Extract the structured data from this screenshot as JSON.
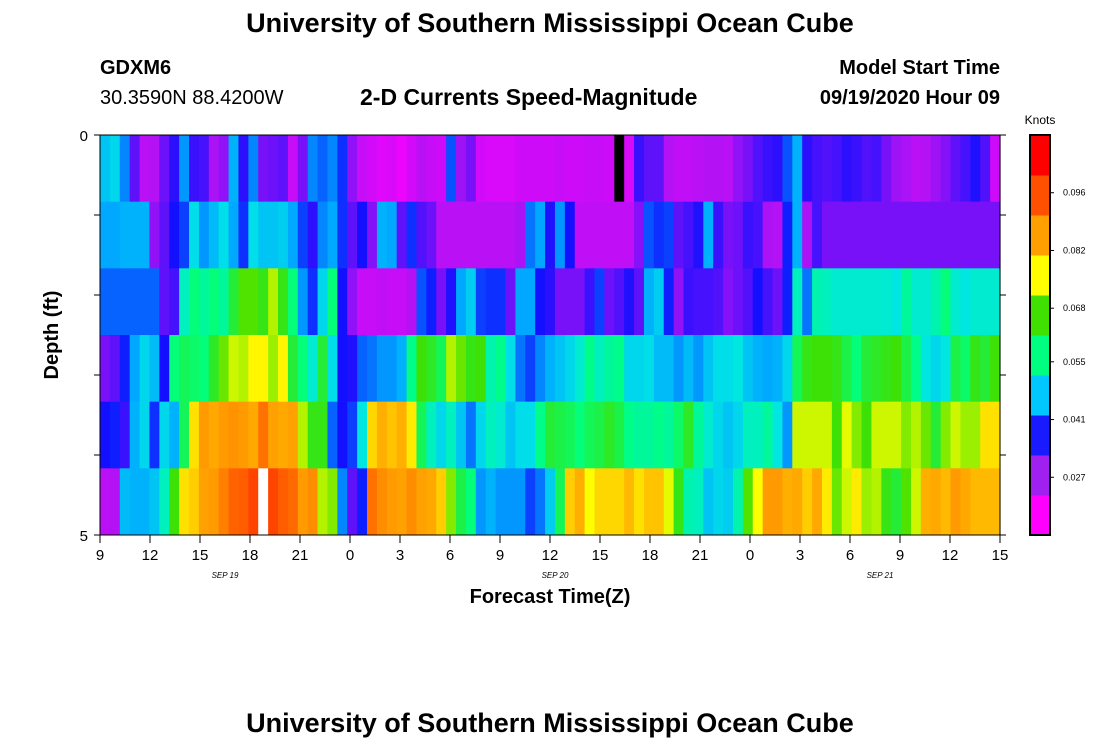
{
  "header": {
    "title": "University of Southern Mississippi Ocean Cube",
    "station": "GDXM6",
    "coords": "30.3590N 88.4200W",
    "subtitle": "2-D Currents Speed-Magnitude",
    "model_label": "Model Start Time",
    "model_time": "09/19/2020 Hour 09"
  },
  "footer": {
    "title": "University of Southern Mississippi Ocean Cube"
  },
  "chart_data": {
    "type": "heatmap",
    "title": "2-D Currents Speed-Magnitude",
    "xlabel": "Forecast Time(Z)",
    "ylabel": "Depth (ft)",
    "y_tick_labels": [
      "0",
      "5"
    ],
    "ylim": [
      0,
      5
    ],
    "y_rows": [
      "0-0.83",
      "0.83-1.67",
      "1.67-2.5",
      "2.5-3.33",
      "3.33-4.17",
      "4.17-5"
    ],
    "x_tick_labels": [
      "9",
      "12",
      "15",
      "18",
      "21",
      "0",
      "3",
      "6",
      "9",
      "12",
      "15",
      "18",
      "21",
      "0",
      "3",
      "6",
      "9",
      "12",
      "15"
    ],
    "date_labels": [
      "SEP 19",
      "SEP 20",
      "SEP 21"
    ],
    "time_start": "09/19/2020 09Z",
    "time_end": "09/21/2020 15Z",
    "hours_per_column": 1,
    "colorbar": {
      "unit": "Knots",
      "tick_labels": [
        "0.027",
        "0.041",
        "0.055",
        "0.068",
        "0.082",
        "0.096"
      ],
      "range": [
        0.013,
        0.11
      ],
      "colors": [
        "#ff00ff",
        "#a020f0",
        "#1a1aff",
        "#00c8ff",
        "#00ff80",
        "#40e000",
        "#ffff00",
        "#ffa000",
        "#ff5000",
        "#ff0000"
      ]
    },
    "palette_stops": [
      [
        0.0,
        "#ff00ff"
      ],
      [
        0.13,
        "#b012f5"
      ],
      [
        0.26,
        "#1010ff"
      ],
      [
        0.35,
        "#00a8ff"
      ],
      [
        0.42,
        "#00e6e6"
      ],
      [
        0.48,
        "#00ff80"
      ],
      [
        0.56,
        "#40e000"
      ],
      [
        0.64,
        "#ffff00"
      ],
      [
        0.72,
        "#ffb000"
      ],
      [
        0.84,
        "#ff6000"
      ],
      [
        1.0,
        "#ff0000"
      ]
    ],
    "missing_cells": [
      {
        "row": 0,
        "col": 52,
        "color": "#000000"
      },
      {
        "row": 5,
        "col": 16,
        "color": "#ffffff"
      }
    ],
    "values": [
      [
        0.05,
        0.052,
        0.045,
        0.032,
        0.024,
        0.025,
        0.031,
        0.036,
        0.046,
        0.035,
        0.034,
        0.026,
        0.028,
        0.048,
        0.036,
        0.045,
        0.03,
        0.031,
        0.032,
        0.022,
        0.03,
        0.045,
        0.043,
        0.045,
        0.04,
        0.028,
        0.022,
        0.02,
        0.018,
        0.019,
        0.016,
        0.02,
        0.024,
        0.022,
        0.021,
        0.042,
        0.027,
        0.03,
        0.02,
        0.019,
        0.019,
        0.019,
        0.021,
        0.021,
        0.021,
        0.021,
        0.022,
        0.021,
        0.021,
        0.022,
        0.022,
        0.021,
        0.015,
        0.019,
        0.035,
        0.032,
        0.032,
        0.025,
        0.023,
        0.023,
        0.024,
        0.025,
        0.025,
        0.024,
        0.028,
        0.03,
        0.033,
        0.035,
        0.036,
        0.042,
        0.048,
        0.036,
        0.034,
        0.033,
        0.034,
        0.036,
        0.035,
        0.033,
        0.034,
        0.03,
        0.027,
        0.026,
        0.024,
        0.025,
        0.027,
        0.029,
        0.032,
        0.034,
        0.037,
        0.033,
        0.021
      ],
      [
        0.047,
        0.047,
        0.048,
        0.048,
        0.048,
        0.028,
        0.032,
        0.038,
        0.041,
        0.053,
        0.046,
        0.049,
        0.053,
        0.047,
        0.04,
        0.053,
        0.05,
        0.05,
        0.051,
        0.047,
        0.041,
        0.036,
        0.045,
        0.047,
        0.04,
        0.032,
        0.038,
        0.029,
        0.048,
        0.047,
        0.032,
        0.04,
        0.033,
        0.031,
        0.024,
        0.024,
        0.024,
        0.024,
        0.024,
        0.024,
        0.024,
        0.024,
        0.026,
        0.044,
        0.047,
        0.037,
        0.046,
        0.038,
        0.023,
        0.023,
        0.023,
        0.023,
        0.023,
        0.023,
        0.029,
        0.042,
        0.04,
        0.041,
        0.032,
        0.034,
        0.037,
        0.048,
        0.035,
        0.03,
        0.031,
        0.035,
        0.034,
        0.026,
        0.025,
        0.039,
        0.048,
        0.026,
        0.034,
        0.03,
        0.03,
        0.03,
        0.03,
        0.03,
        0.03,
        0.03,
        0.03,
        0.03,
        0.03,
        0.03,
        0.03,
        0.03,
        0.03,
        0.03,
        0.03,
        0.03,
        0.03
      ],
      [
        0.043,
        0.043,
        0.043,
        0.043,
        0.043,
        0.043,
        0.032,
        0.034,
        0.056,
        0.06,
        0.058,
        0.06,
        0.058,
        0.064,
        0.068,
        0.068,
        0.066,
        0.072,
        0.066,
        0.06,
        0.046,
        0.04,
        0.052,
        0.06,
        0.038,
        0.028,
        0.022,
        0.022,
        0.023,
        0.022,
        0.022,
        0.025,
        0.042,
        0.039,
        0.03,
        0.037,
        0.047,
        0.051,
        0.041,
        0.04,
        0.04,
        0.031,
        0.047,
        0.047,
        0.038,
        0.036,
        0.03,
        0.03,
        0.03,
        0.035,
        0.041,
        0.031,
        0.033,
        0.037,
        0.032,
        0.048,
        0.051,
        0.039,
        0.028,
        0.035,
        0.034,
        0.034,
        0.033,
        0.029,
        0.031,
        0.033,
        0.038,
        0.034,
        0.031,
        0.039,
        0.056,
        0.044,
        0.057,
        0.056,
        0.055,
        0.055,
        0.055,
        0.055,
        0.055,
        0.055,
        0.054,
        0.058,
        0.055,
        0.055,
        0.057,
        0.06,
        0.055,
        0.054,
        0.055,
        0.055,
        0.055
      ],
      [
        0.03,
        0.032,
        0.039,
        0.047,
        0.052,
        0.049,
        0.038,
        0.06,
        0.062,
        0.061,
        0.06,
        0.065,
        0.069,
        0.073,
        0.072,
        0.076,
        0.076,
        0.071,
        0.076,
        0.064,
        0.06,
        0.055,
        0.064,
        0.053,
        0.038,
        0.037,
        0.043,
        0.044,
        0.046,
        0.046,
        0.048,
        0.059,
        0.067,
        0.065,
        0.062,
        0.072,
        0.069,
        0.066,
        0.067,
        0.057,
        0.059,
        0.053,
        0.044,
        0.041,
        0.045,
        0.048,
        0.05,
        0.052,
        0.055,
        0.059,
        0.056,
        0.058,
        0.059,
        0.052,
        0.052,
        0.053,
        0.049,
        0.049,
        0.046,
        0.049,
        0.046,
        0.05,
        0.053,
        0.053,
        0.054,
        0.05,
        0.048,
        0.047,
        0.048,
        0.052,
        0.062,
        0.066,
        0.067,
        0.067,
        0.066,
        0.063,
        0.06,
        0.064,
        0.065,
        0.066,
        0.067,
        0.063,
        0.059,
        0.054,
        0.052,
        0.054,
        0.063,
        0.061,
        0.066,
        0.064,
        0.067
      ],
      [
        0.038,
        0.039,
        0.035,
        0.048,
        0.052,
        0.04,
        0.052,
        0.048,
        0.062,
        0.078,
        0.086,
        0.084,
        0.086,
        0.087,
        0.086,
        0.084,
        0.092,
        0.085,
        0.084,
        0.085,
        0.072,
        0.066,
        0.066,
        0.043,
        0.038,
        0.041,
        0.054,
        0.079,
        0.083,
        0.081,
        0.083,
        0.077,
        0.062,
        0.056,
        0.052,
        0.056,
        0.05,
        0.044,
        0.052,
        0.056,
        0.055,
        0.05,
        0.053,
        0.053,
        0.059,
        0.064,
        0.063,
        0.062,
        0.06,
        0.062,
        0.063,
        0.065,
        0.063,
        0.059,
        0.058,
        0.058,
        0.059,
        0.058,
        0.061,
        0.065,
        0.058,
        0.055,
        0.052,
        0.05,
        0.052,
        0.056,
        0.056,
        0.058,
        0.054,
        0.046,
        0.073,
        0.073,
        0.073,
        0.073,
        0.067,
        0.074,
        0.07,
        0.067,
        0.073,
        0.073,
        0.073,
        0.07,
        0.072,
        0.069,
        0.064,
        0.07,
        0.073,
        0.071,
        0.071,
        0.078,
        0.078
      ],
      [
        0.024,
        0.025,
        0.049,
        0.048,
        0.048,
        0.05,
        0.056,
        0.067,
        0.078,
        0.08,
        0.085,
        0.086,
        0.09,
        0.094,
        0.095,
        0.099,
        0.095,
        0.099,
        0.095,
        0.093,
        0.086,
        0.088,
        0.072,
        0.07,
        0.045,
        0.032,
        0.039,
        0.092,
        0.088,
        0.086,
        0.085,
        0.088,
        0.085,
        0.084,
        0.08,
        0.07,
        0.063,
        0.06,
        0.046,
        0.048,
        0.046,
        0.046,
        0.046,
        0.041,
        0.044,
        0.051,
        0.062,
        0.08,
        0.083,
        0.075,
        0.079,
        0.079,
        0.079,
        0.082,
        0.078,
        0.081,
        0.081,
        0.074,
        0.066,
        0.057,
        0.056,
        0.05,
        0.052,
        0.051,
        0.057,
        0.068,
        0.075,
        0.086,
        0.086,
        0.083,
        0.084,
        0.08,
        0.084,
        0.077,
        0.069,
        0.073,
        0.077,
        0.071,
        0.072,
        0.066,
        0.064,
        0.068,
        0.073,
        0.083,
        0.084,
        0.082,
        0.086,
        0.084,
        0.082,
        0.082,
        0.082
      ]
    ]
  }
}
